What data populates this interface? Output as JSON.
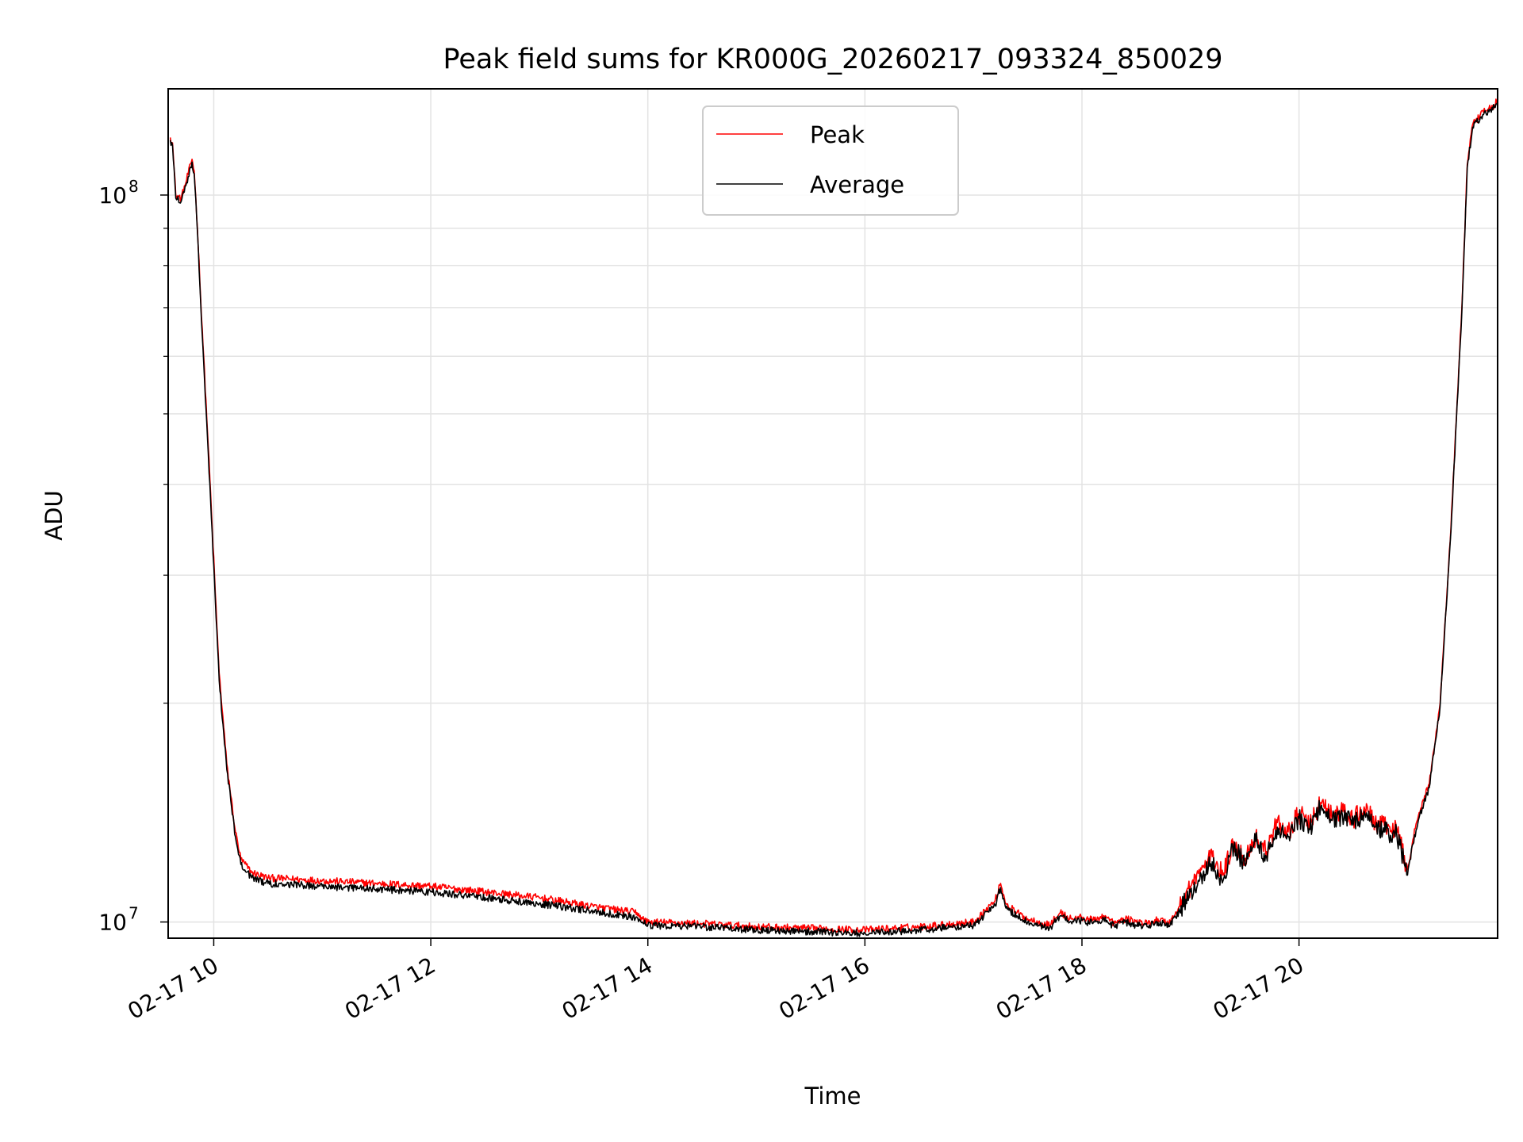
{
  "chart_data": {
    "type": "line",
    "title": "Peak field sums for KR000G_20260217_093324_850029",
    "xlabel": "Time",
    "ylabel": "ADU",
    "yscale": "log",
    "ylim": [
      9500000,
      140000000
    ],
    "xlim_hours": [
      9.58,
      21.83
    ],
    "x_ticks": [
      {
        "hour": 10,
        "label": "02-17 10"
      },
      {
        "hour": 12,
        "label": "02-17 12"
      },
      {
        "hour": 14,
        "label": "02-17 14"
      },
      {
        "hour": 16,
        "label": "02-17 16"
      },
      {
        "hour": 18,
        "label": "02-17 18"
      },
      {
        "hour": 20,
        "label": "02-17 20"
      }
    ],
    "y_ticks": [
      {
        "value": 10000000,
        "base": "10",
        "exp": "7"
      },
      {
        "value": 100000000,
        "base": "10",
        "exp": "8"
      }
    ],
    "grid": true,
    "legend": {
      "placement": "upper-center",
      "entries": [
        "Peak",
        "Average"
      ]
    },
    "series": [
      {
        "name": "Peak",
        "color": "#ff0000",
        "x_hours": [
          9.6,
          9.62,
          9.65,
          9.7,
          9.75,
          9.8,
          9.82,
          9.85,
          9.88,
          9.95,
          10.05,
          10.12,
          10.2,
          10.25,
          10.35,
          10.5,
          11.0,
          11.5,
          12.0,
          12.5,
          13.0,
          13.5,
          13.9,
          13.95,
          14.0,
          14.5,
          15.0,
          15.5,
          16.0,
          16.5,
          17.0,
          17.2,
          17.25,
          17.3,
          17.4,
          17.5,
          17.6,
          17.7,
          17.8,
          17.9,
          18.0,
          18.1,
          18.2,
          18.3,
          18.4,
          18.5,
          18.6,
          18.7,
          18.8,
          18.9,
          19.0,
          19.1,
          19.2,
          19.3,
          19.4,
          19.5,
          19.6,
          19.7,
          19.8,
          19.9,
          20.0,
          20.1,
          20.2,
          20.3,
          20.4,
          20.5,
          20.6,
          20.7,
          20.8,
          20.9,
          21.0,
          21.05,
          21.1,
          21.2,
          21.3,
          21.4,
          21.5,
          21.55,
          21.6,
          21.7,
          21.8,
          21.83
        ],
        "values": [
          120000000,
          118000000,
          100000000,
          99000000,
          105000000,
          112000000,
          108000000,
          90000000,
          72000000,
          45000000,
          22000000,
          16500000,
          13300000,
          12200000,
          11700000,
          11500000,
          11400000,
          11300000,
          11200000,
          11000000,
          10800000,
          10500000,
          10300000,
          10100000,
          10000000,
          9950000,
          9850000,
          9800000,
          9750000,
          9850000,
          10000000,
          10700000,
          11300000,
          10600000,
          10300000,
          10100000,
          10000000,
          9900000,
          10300000,
          10100000,
          10150000,
          10050000,
          10200000,
          9950000,
          10100000,
          10000000,
          9950000,
          10100000,
          9950000,
          10500000,
          11200000,
          11800000,
          12300000,
          11600000,
          12900000,
          12200000,
          13100000,
          12500000,
          13700000,
          13300000,
          14100000,
          13600000,
          14600000,
          14000000,
          14200000,
          13800000,
          14400000,
          13700000,
          13500000,
          13400000,
          11800000,
          13000000,
          14000000,
          15500000,
          20000000,
          35000000,
          70000000,
          110000000,
          125000000,
          130000000,
          133000000,
          135000000
        ]
      },
      {
        "name": "Average",
        "color": "#000000",
        "x_hours": [
          9.6,
          9.62,
          9.65,
          9.7,
          9.75,
          9.8,
          9.82,
          9.85,
          9.88,
          9.95,
          10.05,
          10.12,
          10.2,
          10.25,
          10.35,
          10.5,
          11.0,
          11.5,
          12.0,
          12.5,
          13.0,
          13.5,
          13.9,
          13.95,
          14.0,
          14.5,
          15.0,
          15.5,
          16.0,
          16.5,
          17.0,
          17.2,
          17.25,
          17.3,
          17.4,
          17.5,
          17.6,
          17.7,
          17.8,
          17.9,
          18.0,
          18.1,
          18.2,
          18.3,
          18.4,
          18.5,
          18.6,
          18.7,
          18.8,
          18.9,
          19.0,
          19.1,
          19.2,
          19.3,
          19.4,
          19.5,
          19.6,
          19.7,
          19.8,
          19.9,
          20.0,
          20.1,
          20.2,
          20.3,
          20.4,
          20.5,
          20.6,
          20.7,
          20.8,
          20.9,
          21.0,
          21.05,
          21.1,
          21.2,
          21.3,
          21.4,
          21.5,
          21.55,
          21.6,
          21.7,
          21.8,
          21.83
        ],
        "values": [
          119000000,
          117000000,
          99000000,
          98000000,
          104000000,
          111000000,
          107000000,
          89000000,
          71000000,
          44000000,
          21500000,
          16200000,
          13100000,
          12000000,
          11500000,
          11300000,
          11200000,
          11100000,
          11000000,
          10800000,
          10600000,
          10350000,
          10150000,
          10000000,
          9900000,
          9850000,
          9750000,
          9700000,
          9650000,
          9750000,
          9900000,
          10550000,
          11150000,
          10450000,
          10200000,
          10000000,
          9900000,
          9800000,
          10200000,
          10000000,
          10050000,
          9950000,
          10100000,
          9850000,
          10000000,
          9900000,
          9850000,
          10000000,
          9850000,
          10350000,
          11000000,
          11600000,
          12100000,
          11400000,
          12700000,
          12000000,
          12900000,
          12300000,
          13500000,
          13100000,
          13900000,
          13400000,
          14400000,
          13800000,
          14000000,
          13600000,
          14200000,
          13500000,
          13300000,
          13200000,
          11600000,
          12800000,
          13800000,
          15300000,
          19800000,
          34500000,
          69000000,
          109000000,
          124000000,
          129000000,
          132000000,
          134000000
        ]
      }
    ]
  }
}
